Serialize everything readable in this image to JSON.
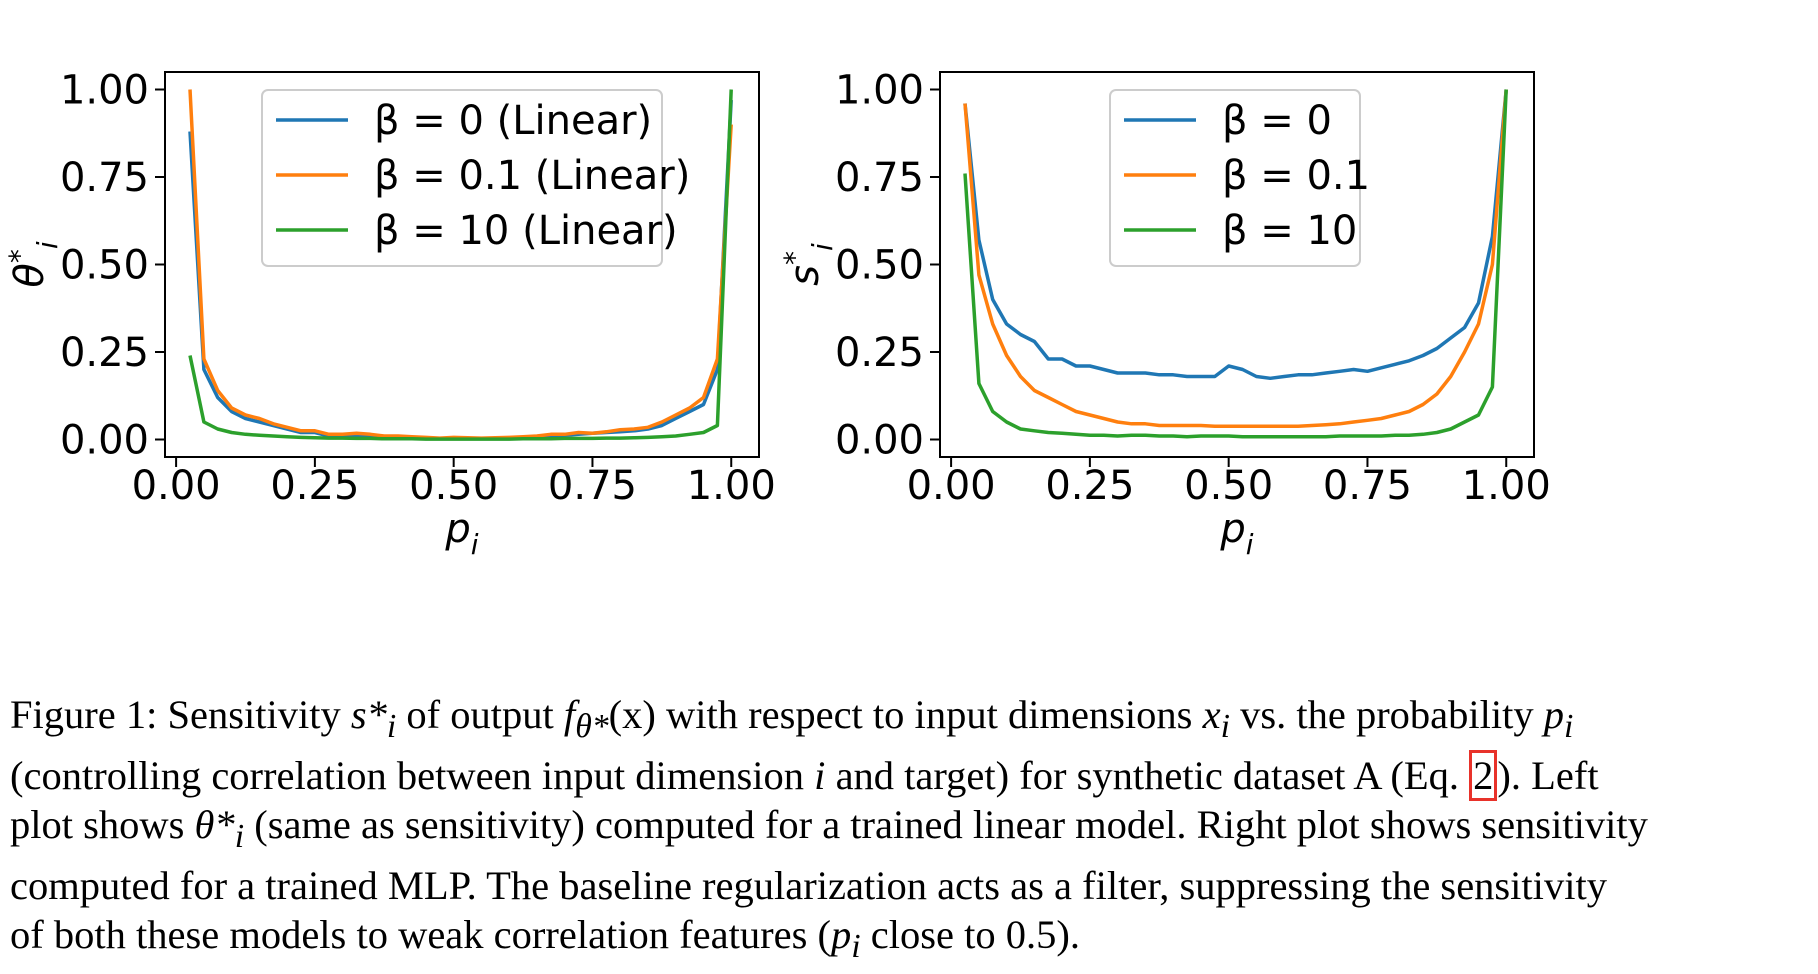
{
  "chart_data": [
    {
      "type": "line",
      "xlabel": "p_i",
      "ylabel": "θ*_i",
      "xlim": [
        -0.02,
        1.05
      ],
      "ylim": [
        -0.05,
        1.05
      ],
      "xticks": [
        "0.00",
        "0.25",
        "0.50",
        "0.75",
        "1.00"
      ],
      "yticks": [
        "0.00",
        "0.25",
        "0.50",
        "0.75",
        "1.00"
      ],
      "legend": "top-center",
      "x": [
        0.025,
        0.05,
        0.075,
        0.1,
        0.125,
        0.15,
        0.175,
        0.2,
        0.225,
        0.25,
        0.275,
        0.3,
        0.325,
        0.35,
        0.375,
        0.4,
        0.425,
        0.45,
        0.475,
        0.5,
        0.525,
        0.55,
        0.575,
        0.6,
        0.625,
        0.65,
        0.675,
        0.7,
        0.725,
        0.75,
        0.775,
        0.8,
        0.825,
        0.85,
        0.875,
        0.9,
        0.925,
        0.95,
        0.975,
        1.0
      ],
      "series": [
        {
          "name": "β = 0 (Linear)",
          "color": "#1f77b4",
          "values": [
            0.88,
            0.2,
            0.12,
            0.08,
            0.06,
            0.05,
            0.04,
            0.03,
            0.02,
            0.02,
            0.01,
            0.01,
            0.012,
            0.01,
            0.008,
            0.007,
            0.005,
            0.004,
            0.003,
            0.003,
            0.002,
            0.002,
            0.003,
            0.003,
            0.005,
            0.008,
            0.01,
            0.012,
            0.015,
            0.018,
            0.02,
            0.022,
            0.025,
            0.03,
            0.04,
            0.06,
            0.08,
            0.1,
            0.2,
            0.97
          ]
        },
        {
          "name": "β = 0.1 (Linear)",
          "color": "#ff7f0e",
          "values": [
            1.0,
            0.23,
            0.14,
            0.09,
            0.07,
            0.06,
            0.045,
            0.035,
            0.025,
            0.025,
            0.015,
            0.015,
            0.018,
            0.015,
            0.01,
            0.01,
            0.008,
            0.006,
            0.004,
            0.006,
            0.005,
            0.004,
            0.005,
            0.006,
            0.008,
            0.01,
            0.015,
            0.015,
            0.02,
            0.018,
            0.022,
            0.028,
            0.03,
            0.035,
            0.05,
            0.07,
            0.09,
            0.12,
            0.23,
            0.9
          ]
        },
        {
          "name": "β = 10 (Linear)",
          "color": "#2ca02c",
          "values": [
            0.24,
            0.05,
            0.03,
            0.02,
            0.015,
            0.012,
            0.01,
            0.008,
            0.006,
            0.005,
            0.004,
            0.004,
            0.003,
            0.003,
            0.002,
            0.002,
            0.002,
            0.001,
            0.001,
            0.001,
            0.001,
            0.001,
            0.001,
            0.001,
            0.002,
            0.002,
            0.002,
            0.003,
            0.003,
            0.003,
            0.004,
            0.004,
            0.005,
            0.006,
            0.008,
            0.01,
            0.015,
            0.02,
            0.04,
            1.0
          ]
        }
      ]
    },
    {
      "type": "line",
      "xlabel": "p_i",
      "ylabel": "s*_i",
      "xlim": [
        -0.02,
        1.05
      ],
      "ylim": [
        -0.05,
        1.05
      ],
      "xticks": [
        "0.00",
        "0.25",
        "0.50",
        "0.75",
        "1.00"
      ],
      "yticks": [
        "0.00",
        "0.25",
        "0.50",
        "0.75",
        "1.00"
      ],
      "legend": "top-center",
      "x": [
        0.025,
        0.05,
        0.075,
        0.1,
        0.125,
        0.15,
        0.175,
        0.2,
        0.225,
        0.25,
        0.275,
        0.3,
        0.325,
        0.35,
        0.375,
        0.4,
        0.425,
        0.45,
        0.475,
        0.5,
        0.525,
        0.55,
        0.575,
        0.6,
        0.625,
        0.65,
        0.675,
        0.7,
        0.725,
        0.75,
        0.775,
        0.8,
        0.825,
        0.85,
        0.875,
        0.9,
        0.925,
        0.95,
        0.975,
        1.0
      ],
      "series": [
        {
          "name": "β = 0",
          "color": "#1f77b4",
          "values": [
            0.96,
            0.57,
            0.4,
            0.33,
            0.3,
            0.28,
            0.23,
            0.23,
            0.21,
            0.21,
            0.2,
            0.19,
            0.19,
            0.19,
            0.185,
            0.185,
            0.18,
            0.18,
            0.18,
            0.21,
            0.2,
            0.18,
            0.175,
            0.18,
            0.185,
            0.185,
            0.19,
            0.195,
            0.2,
            0.195,
            0.205,
            0.215,
            0.225,
            0.24,
            0.26,
            0.29,
            0.32,
            0.39,
            0.58,
            1.0
          ]
        },
        {
          "name": "β = 0.1",
          "color": "#ff7f0e",
          "values": [
            0.96,
            0.47,
            0.33,
            0.24,
            0.18,
            0.14,
            0.12,
            0.1,
            0.08,
            0.07,
            0.06,
            0.05,
            0.045,
            0.045,
            0.04,
            0.04,
            0.04,
            0.04,
            0.038,
            0.038,
            0.038,
            0.038,
            0.038,
            0.038,
            0.038,
            0.04,
            0.042,
            0.045,
            0.05,
            0.055,
            0.06,
            0.07,
            0.08,
            0.1,
            0.13,
            0.18,
            0.25,
            0.33,
            0.5,
            1.0
          ]
        },
        {
          "name": "β = 10",
          "color": "#2ca02c",
          "values": [
            0.76,
            0.16,
            0.08,
            0.05,
            0.03,
            0.025,
            0.02,
            0.018,
            0.015,
            0.012,
            0.012,
            0.01,
            0.012,
            0.012,
            0.01,
            0.01,
            0.008,
            0.01,
            0.01,
            0.01,
            0.008,
            0.008,
            0.008,
            0.008,
            0.008,
            0.008,
            0.008,
            0.01,
            0.01,
            0.01,
            0.01,
            0.012,
            0.012,
            0.015,
            0.02,
            0.03,
            0.05,
            0.07,
            0.15,
            1.0
          ]
        }
      ]
    }
  ],
  "caption": {
    "line1": {
      "a": "Figure 1: Sensitivity ",
      "s": "s*",
      "si": "i",
      "b": " of output ",
      "f": "f",
      "fsub": "θ*",
      "c": "(x) with respect to input dimensions ",
      "x": "x",
      "xi": "i",
      "d": " vs. the probability ",
      "p": "p",
      "pi": "i"
    },
    "line2": {
      "a": "(controlling correlation between input dimension ",
      "i": "i",
      "b": " and target) for synthetic dataset A (Eq. ",
      "ref": "2",
      "c": "). Left"
    },
    "line3": {
      "a": "plot shows ",
      "t": "θ*",
      "ti": "i",
      "b": " (same as sensitivity) computed for a trained linear model. Right plot shows sensitivity"
    },
    "line4": "computed for a trained MLP. The baseline regularization acts as a filter, suppressing the sensitivity",
    "line5": {
      "a": "of both these models to weak correlation features (",
      "p": "p",
      "pi": "i",
      "b": " close to 0.5)."
    }
  }
}
